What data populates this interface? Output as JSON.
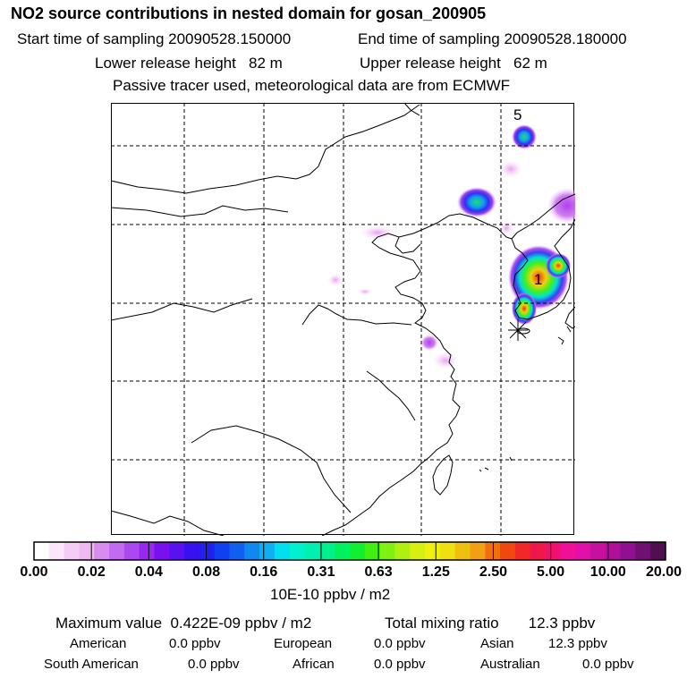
{
  "header": {
    "title": "NO2 source contributions in nested domain for gosan_200905",
    "start_time": "Start time of sampling 20090528.150000",
    "end_time": "End time of sampling 20090528.180000",
    "lower_release": "Lower release height   82 m",
    "upper_release": "Upper release height   62 m",
    "tracer_note": "Passive tracer used, meteorological data are from ECMWF"
  },
  "map": {
    "label_5": "5",
    "label_1": "1",
    "receptor_marker": "gosan-receptor-star"
  },
  "colorbar": {
    "ticks": [
      "0.00",
      "0.02",
      "0.04",
      "0.08",
      "0.16",
      "0.31",
      "0.63",
      "1.25",
      "2.50",
      "5.00",
      "10.00",
      "20.00"
    ],
    "colors": [
      "#ffffff",
      "#fbe6fb",
      "#f5ccf5",
      "#eebaf0",
      "#d88cf0",
      "#c36bf0",
      "#ac48f0",
      "#9628f0",
      "#7a10f0",
      "#5a10f0",
      "#3a10f0",
      "#2020f0",
      "#1040f0",
      "#1060f0",
      "#1088f0",
      "#10b0f0",
      "#00e0f0",
      "#00f0d0",
      "#00f0b0",
      "#00f090",
      "#00f060",
      "#10f030",
      "#40f010",
      "#80f010",
      "#b0f010",
      "#d8f010",
      "#f0f010",
      "#f0e010",
      "#f0c010",
      "#f0a010",
      "#f07010",
      "#f04810",
      "#f02828",
      "#f01848",
      "#f01070",
      "#f01098",
      "#e010a8",
      "#c810a0",
      "#b01098",
      "#901090",
      "#701070",
      "#501050"
    ],
    "units": "10E-10 ppbv / m2"
  },
  "summary": {
    "max_value": "Maximum value  0.422E-09 ppbv / m2",
    "total": "Total mixing ratio       12.3 ppbv",
    "american_label": "American",
    "american_value": "0.0 ppbv",
    "european_label": "European",
    "european_value": "0.0 ppbv",
    "asian_label": "Asian",
    "asian_value": "12.3 ppbv",
    "south_american_label": "South American",
    "south_american_value": "0.0 ppbv",
    "african_label": "African",
    "african_value": "0.0 ppbv",
    "australian_label": "Australian",
    "australian_value": "0.0 ppbv"
  }
}
